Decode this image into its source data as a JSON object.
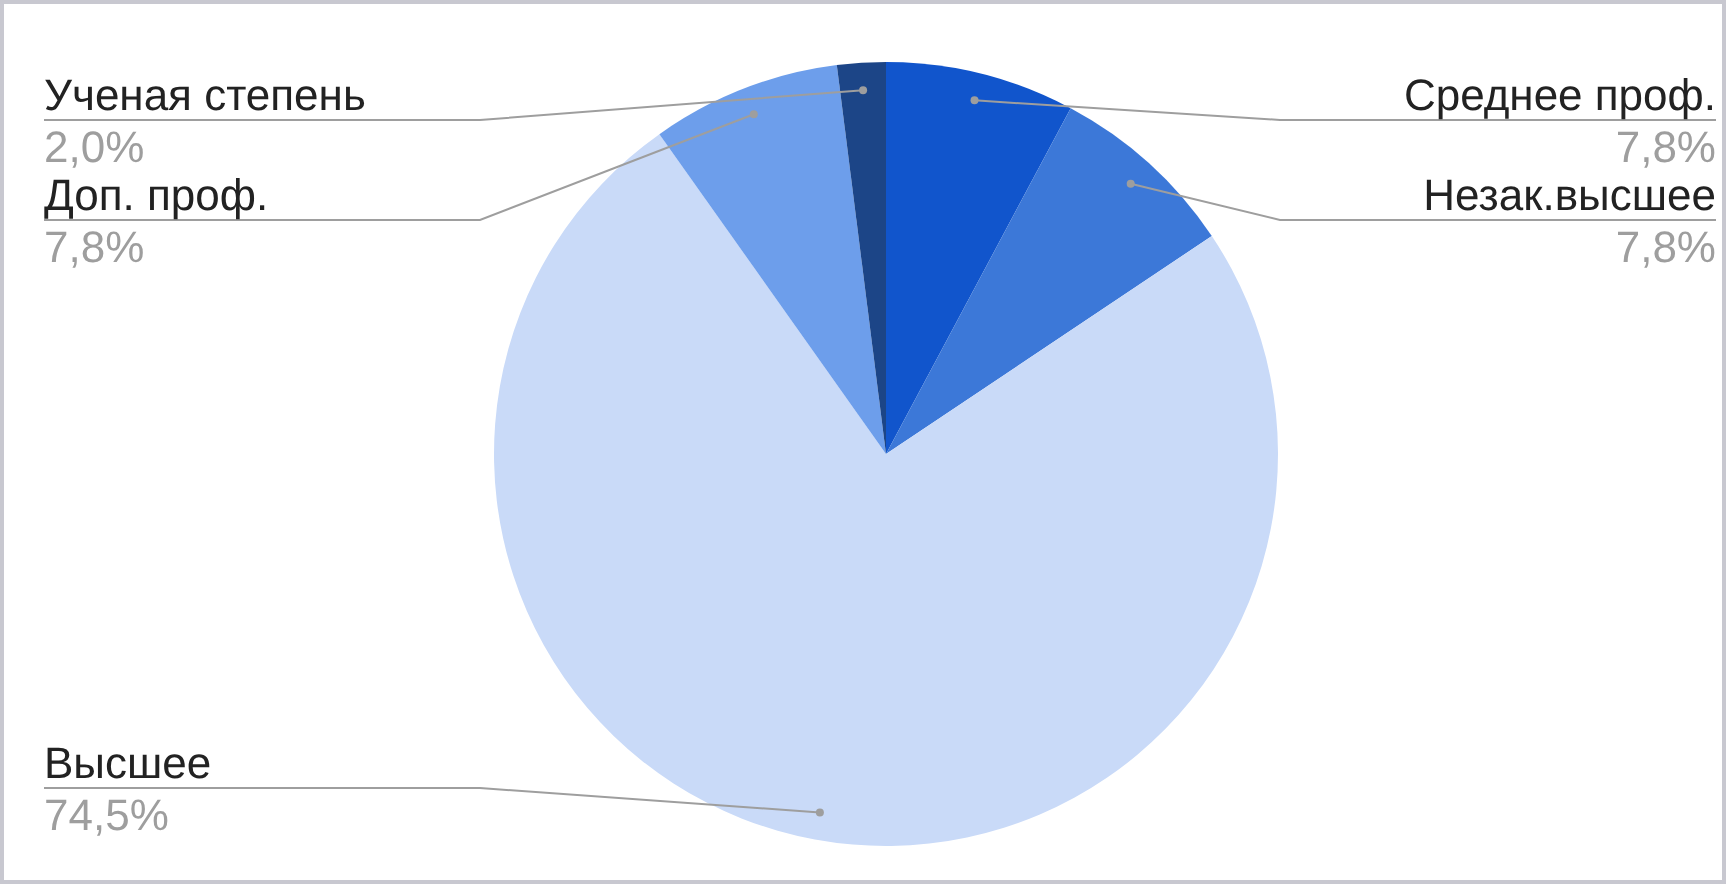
{
  "chart_data": {
    "type": "pie",
    "categories": [
      "Среднее проф.",
      "Незак.высшее",
      "Высшее",
      "Доп. проф.",
      "Ученая степень"
    ],
    "values": [
      7.8,
      7.8,
      74.5,
      7.8,
      2.0
    ],
    "colors": [
      "#1155cc",
      "#3c78d8",
      "#c9daf8",
      "#6d9eeb",
      "#1c4587"
    ],
    "value_labels": [
      "7,8%",
      "7,8%",
      "74,5%",
      "7,8%",
      "2,0%"
    ]
  }
}
